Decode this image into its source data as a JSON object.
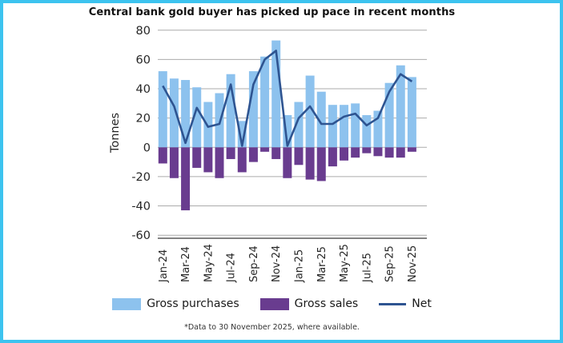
{
  "window": {
    "border_color": "#3cc3ef",
    "background_color": "#ffffff"
  },
  "title": "Central bank gold buyer has picked up pace in recent months",
  "footnote": "*Data to 30 November 2025, where available.",
  "legend": [
    {
      "label": "Gross purchases",
      "color": "#8dc2ee",
      "type": "bar"
    },
    {
      "label": "Gross sales",
      "color": "#693c8f",
      "type": "bar"
    },
    {
      "label": "Net",
      "color": "#2e5491",
      "type": "line"
    }
  ],
  "chart_data": {
    "type": "bar",
    "title": "Central bank gold buyer has picked up pace in recent months",
    "xlabel": "",
    "ylabel": "Tonnes",
    "ylim": [
      -60,
      80
    ],
    "ytick_interval": 20,
    "yticks": [
      80,
      60,
      40,
      20,
      0,
      -20,
      -40,
      -60
    ],
    "grid": true,
    "legend_position": "bottom",
    "categories": [
      "Jan-24",
      "Feb-24",
      "Mar-24",
      "Apr-24",
      "May-24",
      "Jun-24",
      "Jul-24",
      "Aug-24",
      "Sep-24",
      "Oct-24",
      "Nov-24",
      "Dec-24",
      "Jan-25",
      "Feb-25",
      "Mar-25",
      "Apr-25",
      "May-25",
      "Jun-25",
      "Jul-25",
      "Aug-25",
      "Sep-25",
      "Oct-25",
      "Nov-25"
    ],
    "xtick_labels_shown": [
      "Jan-24",
      "Mar-24",
      "May-24",
      "Jul-24",
      "Sep-24",
      "Nov-24",
      "Jan-25",
      "Mar-25",
      "May-25",
      "Jul-25",
      "Sep-25",
      "Nov-25"
    ],
    "series": [
      {
        "name": "Gross purchases",
        "type": "bar",
        "color": "#8dc2ee",
        "values": [
          52,
          47,
          46,
          41,
          31,
          37,
          50,
          18,
          52,
          62,
          73,
          22,
          31,
          49,
          38,
          29,
          29,
          30,
          22,
          25,
          44,
          56,
          48
        ]
      },
      {
        "name": "Gross sales",
        "type": "bar",
        "color": "#693c8f",
        "values": [
          -11,
          -21,
          -43,
          -14,
          -17,
          -21,
          -8,
          -17,
          -10,
          -3,
          -8,
          -21,
          -12,
          -22,
          -23,
          -13,
          -9,
          -7,
          -4,
          -6,
          -7,
          -7,
          -3
        ]
      },
      {
        "name": "Net",
        "type": "line",
        "color": "#2e5491",
        "values": [
          42,
          28,
          3,
          27,
          14,
          16,
          43,
          1,
          43,
          60,
          66,
          1,
          20,
          28,
          16,
          16,
          21,
          23,
          15,
          20,
          38,
          50,
          45
        ]
      }
    ],
    "axis_colors": {
      "gridline": "#ababab",
      "axis_line": "#595959",
      "tick_text": "#262626"
    }
  }
}
